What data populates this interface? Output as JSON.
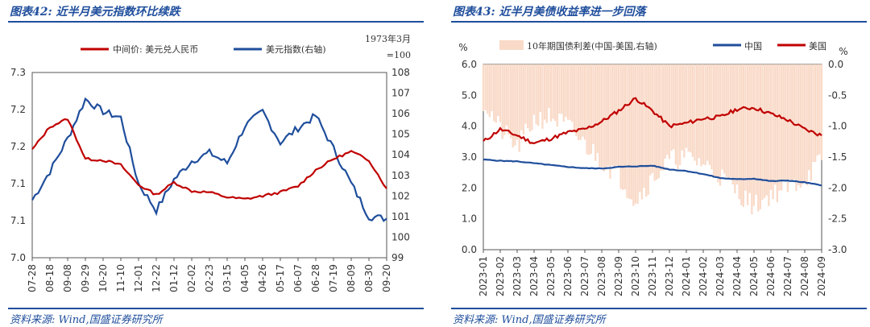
{
  "left": {
    "title": "图表42:  近半月美元指数环比续跌",
    "source": "资料来源:  Wind,国盛证券研究所",
    "note_line1": "1973年3月",
    "note_line2": "=100",
    "colors": {
      "cny": "#c00000",
      "dxy": "#1f4e9c"
    },
    "chart_data": {
      "type": "line",
      "x": [
        "07-28",
        "08-18",
        "09-08",
        "09-29",
        "10-20",
        "11-10",
        "12-01",
        "12-22",
        "01-12",
        "02-02",
        "02-23",
        "03-15",
        "04-05",
        "04-26",
        "05-17",
        "06-07",
        "06-28",
        "07-19",
        "08-09",
        "08-30",
        "09-20"
      ],
      "ylim_left": [
        7.0,
        7.3
      ],
      "yticks_left": [
        "7.3",
        "7.2",
        "7.2",
        "7.1",
        "7.1",
        "7.0"
      ],
      "ylim_right": [
        99,
        108
      ],
      "yticks_right": [
        "108",
        "107",
        "106",
        "105",
        "104",
        "103",
        "102",
        "101",
        "100",
        "99"
      ],
      "series": [
        {
          "name": "中间价: 美元兑人民币",
          "axis": "left",
          "values": [
            7.175,
            7.212,
            7.225,
            7.16,
            7.158,
            7.15,
            7.118,
            7.102,
            7.122,
            7.108,
            7.106,
            7.098,
            7.095,
            7.1,
            7.106,
            7.116,
            7.142,
            7.16,
            7.172,
            7.158,
            7.112
          ]
        },
        {
          "name": "美元指数(右轴)",
          "axis": "right",
          "values": [
            101.8,
            103.2,
            104.8,
            106.7,
            106.1,
            105.8,
            102.6,
            101.3,
            102.8,
            103.7,
            104.1,
            103.6,
            105.4,
            106.1,
            104.6,
            105.3,
            105.9,
            104.3,
            102.6,
            101.0,
            100.9
          ]
        }
      ]
    }
  },
  "right": {
    "title": "图表43:  近半月美债收益率进一步回落",
    "source": "资料来源:  Wind,国盛证券研究所",
    "left_unit": "%",
    "right_unit": "%",
    "colors": {
      "spread": "#f9dac8",
      "china": "#1f4e9c",
      "us": "#c00000"
    },
    "chart_data": {
      "type": "line",
      "x": [
        "2023-01",
        "2023-02",
        "2023-03",
        "2023-04",
        "2023-05",
        "2023-06",
        "2023-07",
        "2023-08",
        "2023-09",
        "2023-10",
        "2023-11",
        "2023-12",
        "2024-01",
        "2024-02",
        "2024-03",
        "2024-04",
        "2024-05",
        "2024-06",
        "2024-07",
        "2024-08",
        "2024-09"
      ],
      "ylim_left": [
        0.0,
        6.0
      ],
      "yticks_left": [
        "6.0",
        "5.0",
        "4.0",
        "3.0",
        "2.0",
        "1.0",
        "0.0"
      ],
      "ylim_right": [
        -3.0,
        0.0
      ],
      "yticks_right": [
        "0.0",
        "-0.5",
        "-1.0",
        "-1.5",
        "-2.0",
        "-2.5",
        "-3.0"
      ],
      "series": [
        {
          "name": "10年期国债利差(中国-美国,右轴)",
          "axis": "right",
          "values": [
            -0.6,
            -1.05,
            -1.35,
            -0.9,
            -0.85,
            -1.0,
            -1.3,
            -1.55,
            -1.8,
            -2.2,
            -1.85,
            -1.55,
            -1.5,
            -1.6,
            -1.8,
            -2.05,
            -2.3,
            -2.1,
            -2.0,
            -1.85,
            -1.55
          ]
        },
        {
          "name": "中国",
          "axis": "left",
          "values": [
            2.92,
            2.88,
            2.86,
            2.8,
            2.74,
            2.68,
            2.64,
            2.63,
            2.68,
            2.7,
            2.72,
            2.6,
            2.55,
            2.45,
            2.32,
            2.28,
            2.3,
            2.22,
            2.24,
            2.18,
            2.08
          ]
        },
        {
          "name": "美国",
          "axis": "left",
          "values": [
            3.5,
            3.9,
            3.7,
            3.45,
            3.6,
            3.8,
            3.9,
            4.15,
            4.5,
            4.9,
            4.5,
            4.0,
            4.1,
            4.25,
            4.3,
            4.55,
            4.6,
            4.4,
            4.2,
            3.9,
            3.7
          ]
        }
      ]
    }
  }
}
